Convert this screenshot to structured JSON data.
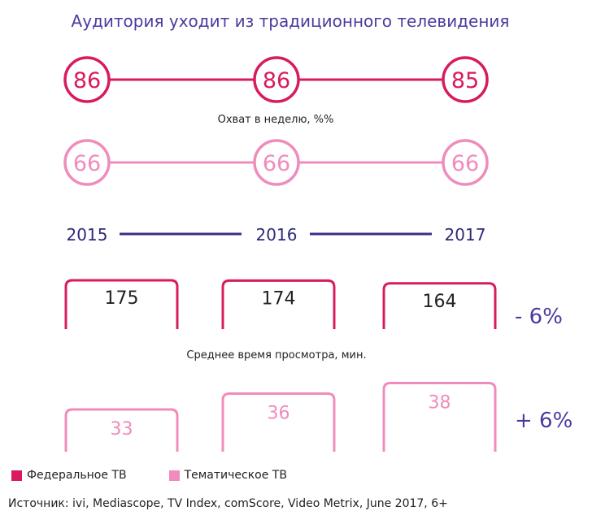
{
  "chart_data": {
    "type": "infographic",
    "title": "Аудитория уходит из традиционного телевидения",
    "years": [
      "2015",
      "2016",
      "2017"
    ],
    "reach": {
      "label": "Охват в неделю, %%",
      "federal": [
        86,
        86,
        85
      ],
      "thematic": [
        66,
        66,
        66
      ]
    },
    "viewing_time": {
      "label": "Среднее время просмотра, мин.",
      "federal": [
        175,
        174,
        164
      ],
      "thematic": [
        33,
        36,
        38
      ],
      "federal_change": "- 6%",
      "thematic_change": "+ 6%"
    },
    "legend": [
      "Федеральное ТВ",
      "Тематическое ТВ"
    ]
  },
  "source": "Источник: ivi, Mediascope, TV Index, comScore, Video Metrix, June 2017, 6+",
  "colors": {
    "federal": "#d81b60",
    "thematic": "#f08cbc",
    "title": "#4a3aa0",
    "years": "#2e2a7a",
    "year_line": "#3a2f88"
  }
}
